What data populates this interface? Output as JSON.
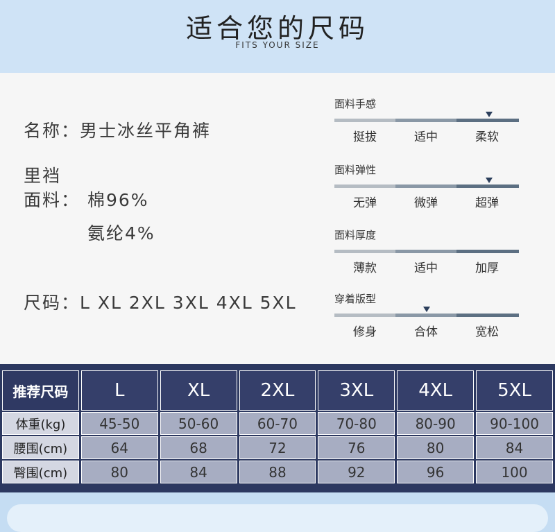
{
  "header": {
    "title": "适合您的尺码",
    "subtitle": "FITS YOUR SIZE"
  },
  "info": {
    "name": "名称：男士冰丝平角裤",
    "lining_label": "里裆",
    "fabric_label": "面料：",
    "fabric_1": "棉96%",
    "fabric_2": "氨纶4%",
    "sizes": "尺码：L XL 2XL 3XL 4XL 5XL"
  },
  "scales": [
    {
      "label": "面料手感",
      "options": [
        "挺拔",
        "适中",
        "柔软"
      ],
      "selected": 2
    },
    {
      "label": "面料弹性",
      "options": [
        "无弹",
        "微弹",
        "超弹"
      ],
      "selected": 2
    },
    {
      "label": "面料厚度",
      "options": [
        "薄款",
        "适中",
        "加厚"
      ],
      "selected": null
    },
    {
      "label": "穿着版型",
      "options": [
        "修身",
        "合体",
        "宽松"
      ],
      "selected": 1
    }
  ],
  "size_table": {
    "header": [
      "推荐尺码",
      "L",
      "XL",
      "2XL",
      "3XL",
      "4XL",
      "5XL"
    ],
    "rows": [
      [
        "体重(kg)",
        "45-50",
        "50-60",
        "60-70",
        "70-80",
        "80-90",
        "90-100"
      ],
      [
        "腰围(cm)",
        "64",
        "68",
        "72",
        "76",
        "80",
        "84"
      ],
      [
        "臀围(cm)",
        "80",
        "84",
        "88",
        "92",
        "96",
        "100"
      ]
    ]
  }
}
